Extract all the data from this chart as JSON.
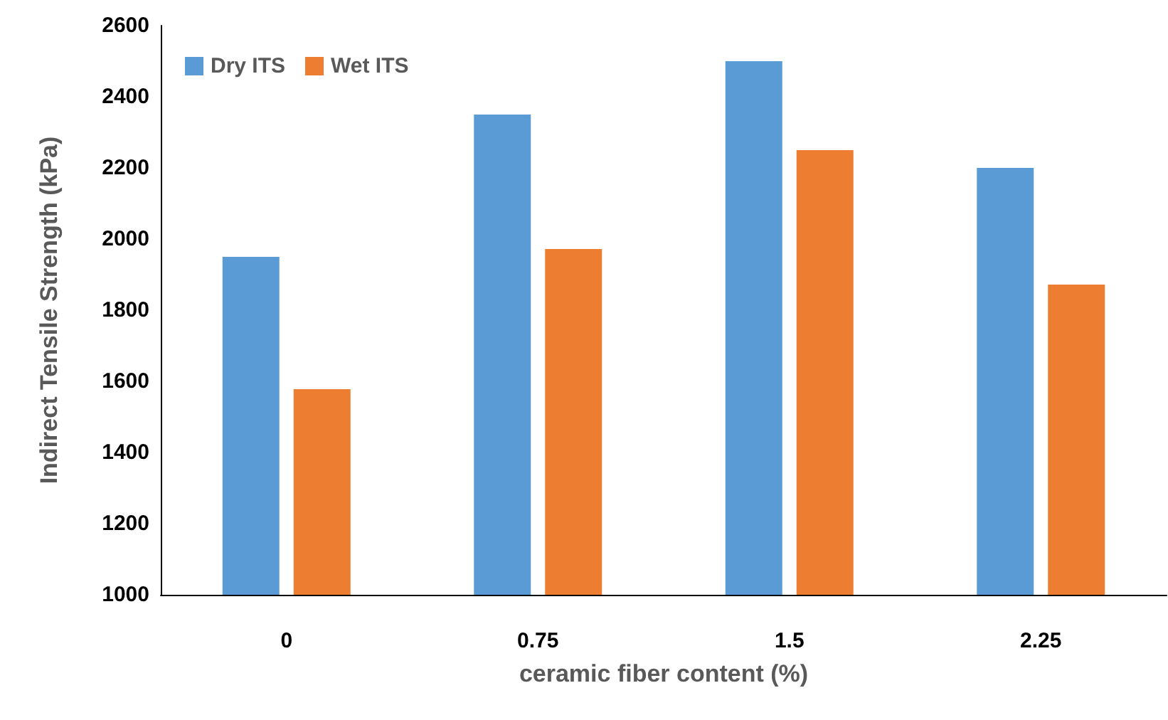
{
  "chart_data": {
    "type": "bar",
    "xlabel": "ceramic fiber content (%)",
    "ylabel": "Indirect Tensile Strength (kPa)",
    "categories": [
      "0",
      "0.75",
      "1.5",
      "2.25"
    ],
    "series": [
      {
        "name": "Dry ITS",
        "color": "#5b9bd5",
        "values": [
          1950,
          2350,
          2500,
          2200
        ]
      },
      {
        "name": "Wet ITS",
        "color": "#ed7d31",
        "values": [
          1578,
          1972,
          2250,
          1872
        ]
      }
    ],
    "ylim": [
      1000,
      2600
    ],
    "yticks": [
      1000,
      1200,
      1400,
      1600,
      1800,
      2000,
      2200,
      2400,
      2600
    ],
    "grid": false,
    "legend": "top left"
  }
}
